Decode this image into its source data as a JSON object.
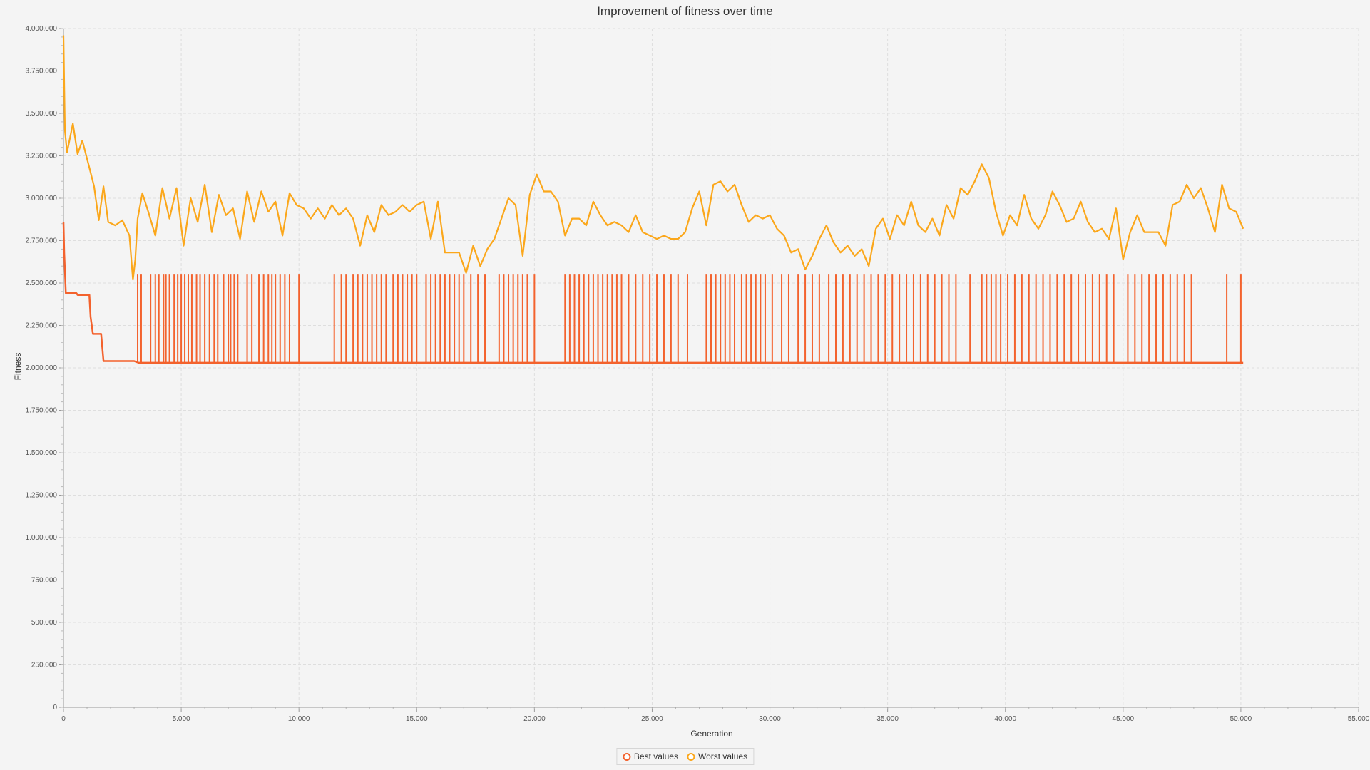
{
  "chart_data": {
    "type": "line",
    "title": "Improvement of fitness over time",
    "xlabel": "Generation",
    "ylabel": "Fitness",
    "xlim": [
      0,
      55000
    ],
    "ylim": [
      0,
      4000000
    ],
    "x_ticks": [
      0,
      5000,
      10000,
      15000,
      20000,
      25000,
      30000,
      35000,
      40000,
      45000,
      50000,
      55000
    ],
    "x_tick_labels": [
      "0",
      "5.000",
      "10.000",
      "15.000",
      "20.000",
      "25.000",
      "30.000",
      "35.000",
      "40.000",
      "45.000",
      "50.000",
      "55.000"
    ],
    "y_ticks": [
      0,
      250000,
      500000,
      750000,
      1000000,
      1250000,
      1500000,
      1750000,
      2000000,
      2250000,
      2500000,
      2750000,
      3000000,
      3250000,
      3500000,
      3750000,
      4000000
    ],
    "y_tick_labels": [
      "0",
      "250.000",
      "500.000",
      "750.000",
      "1.000.000",
      "1.250.000",
      "1.500.000",
      "1.750.000",
      "2.000.000",
      "2.250.000",
      "2.500.000",
      "2.750.000",
      "3.000.000",
      "3.250.000",
      "3.500.000",
      "3.750.000",
      "4.000.000"
    ],
    "grid": true,
    "legend_position": "bottom",
    "colors": {
      "best": "#f3622d",
      "worst": "#fba71b"
    },
    "series": [
      {
        "name": "Best values",
        "points": [
          [
            0,
            2860000
          ],
          [
            30,
            2680000
          ],
          [
            100,
            2440000
          ],
          [
            550,
            2440000
          ],
          [
            600,
            2430000
          ],
          [
            1100,
            2430000
          ],
          [
            1150,
            2300000
          ],
          [
            1250,
            2200000
          ],
          [
            1600,
            2200000
          ],
          [
            1700,
            2040000
          ],
          [
            3000,
            2040000
          ],
          [
            3200,
            2030000
          ],
          [
            50100,
            2030000
          ]
        ],
        "spikes": {
          "low": 2030000,
          "high": 2550000,
          "x": [
            3150,
            3300,
            3700,
            3900,
            4050,
            4250,
            4350,
            4500,
            4700,
            4850,
            5000,
            5150,
            5300,
            5450,
            5650,
            5800,
            6000,
            6200,
            6400,
            6550,
            6800,
            7000,
            7100,
            7250,
            7400,
            7800,
            8000,
            8300,
            8500,
            8700,
            8850,
            9000,
            9200,
            9400,
            9600,
            10000,
            11500,
            11800,
            12000,
            12300,
            12500,
            12700,
            12900,
            13100,
            13300,
            13500,
            13700,
            14000,
            14200,
            14400,
            14600,
            14800,
            15000,
            15400,
            15600,
            15800,
            16000,
            16200,
            16400,
            16600,
            16800,
            17000,
            17300,
            17600,
            17900,
            18500,
            18700,
            18900,
            19100,
            19300,
            19500,
            19700,
            20000,
            21300,
            21500,
            21700,
            21900,
            22100,
            22300,
            22500,
            22700,
            22900,
            23100,
            23300,
            23500,
            23700,
            24000,
            24300,
            24600,
            24900,
            25200,
            25500,
            25800,
            26100,
            26500,
            27300,
            27500,
            27700,
            27900,
            28100,
            28300,
            28500,
            28800,
            29000,
            29200,
            29400,
            29600,
            29800,
            30100,
            30500,
            30800,
            31200,
            31500,
            31800,
            32100,
            32500,
            32800,
            33100,
            33400,
            33700,
            34000,
            34300,
            34600,
            34900,
            35200,
            35500,
            35800,
            36100,
            36400,
            36700,
            37000,
            37300,
            37600,
            37900,
            38500,
            39000,
            39200,
            39400,
            39600,
            39800,
            40100,
            40400,
            40700,
            41000,
            41300,
            41600,
            41900,
            42200,
            42500,
            42800,
            43100,
            43400,
            43700,
            44000,
            44300,
            44600,
            45200,
            45500,
            45800,
            46100,
            46400,
            46700,
            47000,
            47300,
            47600,
            47900,
            49400,
            50000
          ]
        }
      },
      {
        "name": "Worst values",
        "points": [
          [
            0,
            3960000
          ],
          [
            60,
            3400000
          ],
          [
            150,
            3270000
          ],
          [
            400,
            3440000
          ],
          [
            600,
            3260000
          ],
          [
            800,
            3340000
          ],
          [
            1100,
            3180000
          ],
          [
            1300,
            3070000
          ],
          [
            1500,
            2870000
          ],
          [
            1700,
            3070000
          ],
          [
            1900,
            2860000
          ],
          [
            2200,
            2840000
          ],
          [
            2500,
            2870000
          ],
          [
            2800,
            2780000
          ],
          [
            2950,
            2520000
          ],
          [
            3050,
            2640000
          ],
          [
            3150,
            2880000
          ],
          [
            3350,
            3030000
          ],
          [
            3600,
            2920000
          ],
          [
            3900,
            2780000
          ],
          [
            4200,
            3060000
          ],
          [
            4500,
            2880000
          ],
          [
            4800,
            3060000
          ],
          [
            5100,
            2720000
          ],
          [
            5400,
            3000000
          ],
          [
            5700,
            2860000
          ],
          [
            6000,
            3080000
          ],
          [
            6300,
            2800000
          ],
          [
            6600,
            3020000
          ],
          [
            6900,
            2900000
          ],
          [
            7200,
            2940000
          ],
          [
            7500,
            2760000
          ],
          [
            7800,
            3040000
          ],
          [
            8100,
            2860000
          ],
          [
            8400,
            3040000
          ],
          [
            8700,
            2920000
          ],
          [
            9000,
            2980000
          ],
          [
            9300,
            2780000
          ],
          [
            9600,
            3030000
          ],
          [
            9900,
            2960000
          ],
          [
            10200,
            2940000
          ],
          [
            10500,
            2880000
          ],
          [
            10800,
            2940000
          ],
          [
            11100,
            2880000
          ],
          [
            11400,
            2960000
          ],
          [
            11700,
            2900000
          ],
          [
            12000,
            2940000
          ],
          [
            12300,
            2880000
          ],
          [
            12600,
            2720000
          ],
          [
            12900,
            2900000
          ],
          [
            13200,
            2800000
          ],
          [
            13500,
            2960000
          ],
          [
            13800,
            2900000
          ],
          [
            14100,
            2920000
          ],
          [
            14400,
            2960000
          ],
          [
            14700,
            2920000
          ],
          [
            15000,
            2960000
          ],
          [
            15300,
            2980000
          ],
          [
            15600,
            2760000
          ],
          [
            15900,
            2980000
          ],
          [
            16200,
            2680000
          ],
          [
            16500,
            2680000
          ],
          [
            16800,
            2680000
          ],
          [
            17100,
            2560000
          ],
          [
            17400,
            2720000
          ],
          [
            17700,
            2600000
          ],
          [
            18000,
            2700000
          ],
          [
            18300,
            2760000
          ],
          [
            18600,
            2880000
          ],
          [
            18900,
            3000000
          ],
          [
            19200,
            2960000
          ],
          [
            19500,
            2660000
          ],
          [
            19800,
            3020000
          ],
          [
            20100,
            3140000
          ],
          [
            20400,
            3040000
          ],
          [
            20700,
            3040000
          ],
          [
            21000,
            2980000
          ],
          [
            21300,
            2780000
          ],
          [
            21600,
            2880000
          ],
          [
            21900,
            2880000
          ],
          [
            22200,
            2840000
          ],
          [
            22500,
            2980000
          ],
          [
            22800,
            2900000
          ],
          [
            23100,
            2840000
          ],
          [
            23400,
            2860000
          ],
          [
            23700,
            2840000
          ],
          [
            24000,
            2800000
          ],
          [
            24300,
            2900000
          ],
          [
            24600,
            2800000
          ],
          [
            24900,
            2780000
          ],
          [
            25200,
            2760000
          ],
          [
            25500,
            2780000
          ],
          [
            25800,
            2760000
          ],
          [
            26100,
            2760000
          ],
          [
            26400,
            2800000
          ],
          [
            26700,
            2940000
          ],
          [
            27000,
            3040000
          ],
          [
            27300,
            2840000
          ],
          [
            27600,
            3080000
          ],
          [
            27900,
            3100000
          ],
          [
            28200,
            3040000
          ],
          [
            28500,
            3080000
          ],
          [
            28800,
            2960000
          ],
          [
            29100,
            2860000
          ],
          [
            29400,
            2900000
          ],
          [
            29700,
            2880000
          ],
          [
            30000,
            2900000
          ],
          [
            30300,
            2820000
          ],
          [
            30600,
            2780000
          ],
          [
            30900,
            2680000
          ],
          [
            31200,
            2700000
          ],
          [
            31500,
            2580000
          ],
          [
            31800,
            2660000
          ],
          [
            32100,
            2760000
          ],
          [
            32400,
            2840000
          ],
          [
            32700,
            2740000
          ],
          [
            33000,
            2680000
          ],
          [
            33300,
            2720000
          ],
          [
            33600,
            2660000
          ],
          [
            33900,
            2700000
          ],
          [
            34200,
            2600000
          ],
          [
            34500,
            2820000
          ],
          [
            34800,
            2880000
          ],
          [
            35100,
            2760000
          ],
          [
            35400,
            2900000
          ],
          [
            35700,
            2840000
          ],
          [
            36000,
            2980000
          ],
          [
            36300,
            2840000
          ],
          [
            36600,
            2800000
          ],
          [
            36900,
            2880000
          ],
          [
            37200,
            2780000
          ],
          [
            37500,
            2960000
          ],
          [
            37800,
            2880000
          ],
          [
            38100,
            3060000
          ],
          [
            38400,
            3020000
          ],
          [
            38700,
            3100000
          ],
          [
            39000,
            3200000
          ],
          [
            39300,
            3120000
          ],
          [
            39600,
            2920000
          ],
          [
            39900,
            2780000
          ],
          [
            40200,
            2900000
          ],
          [
            40500,
            2840000
          ],
          [
            40800,
            3020000
          ],
          [
            41100,
            2880000
          ],
          [
            41400,
            2820000
          ],
          [
            41700,
            2900000
          ],
          [
            42000,
            3040000
          ],
          [
            42300,
            2960000
          ],
          [
            42600,
            2860000
          ],
          [
            42900,
            2880000
          ],
          [
            43200,
            2980000
          ],
          [
            43500,
            2860000
          ],
          [
            43800,
            2800000
          ],
          [
            44100,
            2820000
          ],
          [
            44400,
            2760000
          ],
          [
            44700,
            2940000
          ],
          [
            45000,
            2640000
          ],
          [
            45300,
            2800000
          ],
          [
            45600,
            2900000
          ],
          [
            45900,
            2800000
          ],
          [
            46200,
            2800000
          ],
          [
            46500,
            2800000
          ],
          [
            46800,
            2720000
          ],
          [
            47100,
            2960000
          ],
          [
            47400,
            2980000
          ],
          [
            47700,
            3080000
          ],
          [
            48000,
            3000000
          ],
          [
            48300,
            3060000
          ],
          [
            48600,
            2940000
          ],
          [
            48900,
            2800000
          ],
          [
            49200,
            3080000
          ],
          [
            49500,
            2940000
          ],
          [
            49800,
            2920000
          ],
          [
            50100,
            2820000
          ]
        ]
      }
    ]
  }
}
